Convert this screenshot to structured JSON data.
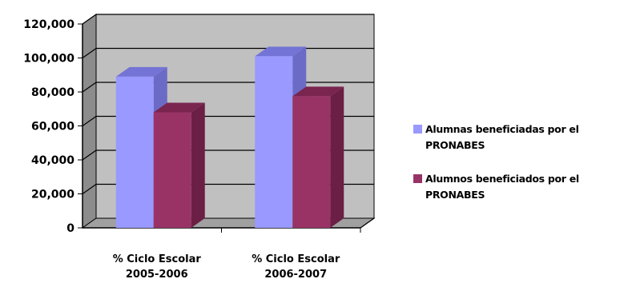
{
  "chart_data": {
    "type": "bar",
    "style": "3d-clustered-column",
    "categories": [
      [
        "% Ciclo Escolar",
        "2005-2006"
      ],
      [
        "% Ciclo Escolar",
        "2006-2007"
      ]
    ],
    "series": [
      {
        "name": "Alumnas beneficiadas por el PRONABES",
        "values": [
          89000,
          101000
        ]
      },
      {
        "name": "Alumnos beneficiados por el PRONABES",
        "values": [
          68000,
          77500
        ]
      }
    ],
    "yticks": [
      "0",
      "20,000",
      "40,000",
      "60,000",
      "80,000",
      "100,000",
      "120,000"
    ],
    "ylim": [
      0,
      120000
    ],
    "grid": true,
    "legend_position": "right",
    "colors": {
      "series1_front": "#9999ff",
      "series1_side": "#6b6bc7",
      "series1_top": "#7474d6",
      "series2_front": "#993366",
      "series2_side": "#6b1f44",
      "series2_top": "#7a2450",
      "wall": "#c0c0c0",
      "floor": "#a0a0a0"
    }
  }
}
